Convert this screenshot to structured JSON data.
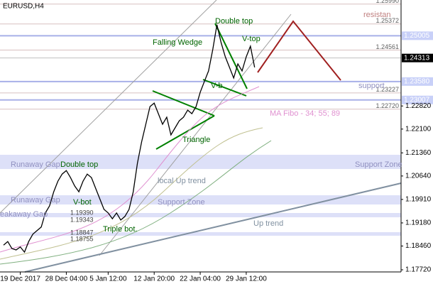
{
  "chart_data": {
    "type": "line",
    "title": "EURUSD,H4",
    "series": [
      {
        "color": "#000000",
        "values": [
          1.1849,
          1.186,
          1.1838,
          1.1834,
          1.1843,
          1.1827,
          1.186,
          1.1883,
          1.1894,
          1.1905,
          1.1949,
          1.1971,
          1.2015,
          1.2048,
          1.207,
          1.2081,
          1.2059,
          1.2033,
          1.2015,
          1.2048,
          1.207,
          1.2059,
          1.2026,
          1.1993,
          1.196,
          1.1949,
          1.1931,
          1.1949,
          1.1927,
          1.1938,
          1.196,
          1.2015,
          1.2104,
          1.217,
          1.2225,
          1.228,
          1.2291,
          1.2258,
          1.2225,
          1.2247,
          1.2192,
          1.2214,
          1.2236,
          1.2247,
          1.2269,
          1.2258,
          1.228,
          1.2325,
          1.2358,
          1.2391,
          1.2457,
          1.2535,
          1.2479,
          1.2435,
          1.2402,
          1.2369,
          1.2413,
          1.2391,
          1.2435,
          1.2468,
          1.2402
        ]
      }
    ],
    "xticks": [
      {
        "value": 4,
        "label": "19 Dec 2017"
      },
      {
        "value": 15,
        "label": "28 Dec 04:00"
      },
      {
        "value": 25,
        "label": "5 Jan 12:00"
      },
      {
        "value": 36,
        "label": "12 Jan 20:00"
      },
      {
        "value": 47,
        "label": "22 Jan 04:00"
      },
      {
        "value": 58,
        "label": "29 Jan 12:00"
      }
    ],
    "xlim": [
      0,
      95
    ],
    "ylim": [
      1.17654,
      1.26118
    ],
    "yticks": [
      {
        "value": 1.2282,
        "label": "1.22820"
      },
      {
        "value": 1.221,
        "label": "1.22100"
      },
      {
        "value": 1.2136,
        "label": "1.21360"
      },
      {
        "value": 1.2064,
        "label": "1.20640"
      },
      {
        "value": 1.1991,
        "label": "1.19910"
      },
      {
        "value": 1.1918,
        "label": "1.19180"
      },
      {
        "value": 1.1846,
        "label": "1.18460"
      },
      {
        "value": 1.1772,
        "label": "1.17720"
      }
    ],
    "price_levels": [
      {
        "value": 1.2599,
        "label": "1.25990"
      },
      {
        "value": 1.25372,
        "label": "1.25372"
      },
      {
        "value": 1.24561,
        "label": "1.24561"
      },
      {
        "value": 1.23227,
        "label": "1.23227"
      },
      {
        "value": 1.2272,
        "label": "1.22720"
      }
    ],
    "zone_levels": [
      {
        "value": 1.25005,
        "label": "1.25005"
      },
      {
        "value": 1.2358,
        "label": "1.23580"
      },
      {
        "value": 1.23007,
        "label": "1.23007"
      }
    ],
    "current_price": {
      "value": 1.24313,
      "label": "1.24313"
    },
    "zones": [
      [
        1.20858,
        1.213
      ],
      [
        1.19753,
        1.20041
      ],
      [
        1.19355,
        1.19488
      ],
      [
        1.1878,
        1.18891
      ]
    ],
    "annotations": [
      {
        "text": "Double top",
        "color": "#006400"
      },
      {
        "text": "Falling Wedge",
        "color": "#006400"
      },
      {
        "text": "V-top",
        "color": "#006400"
      },
      {
        "text": "V-b",
        "color": "#006400"
      },
      {
        "text": "resistan",
        "color": "#c08080"
      },
      {
        "text": "support",
        "color": "#9090c0"
      },
      {
        "text": "MA Fibo - 34; 55; 89",
        "color": "#e090d0"
      },
      {
        "text": "Triangle",
        "color": "#006400"
      },
      {
        "text": "Runaway Gap",
        "color": "#9090c0"
      },
      {
        "text": "Support Zone",
        "color": "#9090c0"
      },
      {
        "text": "Double top",
        "color": "#006400"
      },
      {
        "text": "local Up trend",
        "color": "#8090a0"
      },
      {
        "text": "Runaway Gap",
        "color": "#9090c0"
      },
      {
        "text": "Support Zone",
        "color": "#9090c0"
      },
      {
        "text": "V-bot",
        "color": "#006400"
      },
      {
        "text": "1.19390",
        "color": "#404040"
      },
      {
        "text": "1.19343",
        "color": "#404040"
      },
      {
        "text": "eakaway Gap",
        "color": "#9090c0"
      },
      {
        "text": "1.18847",
        "color": "#404040"
      },
      {
        "text": "1.18755",
        "color": "#404040"
      },
      {
        "text": "Triple bot.",
        "color": "#006400"
      },
      {
        "text": "Up trend",
        "color": "#8090a0"
      }
    ]
  }
}
